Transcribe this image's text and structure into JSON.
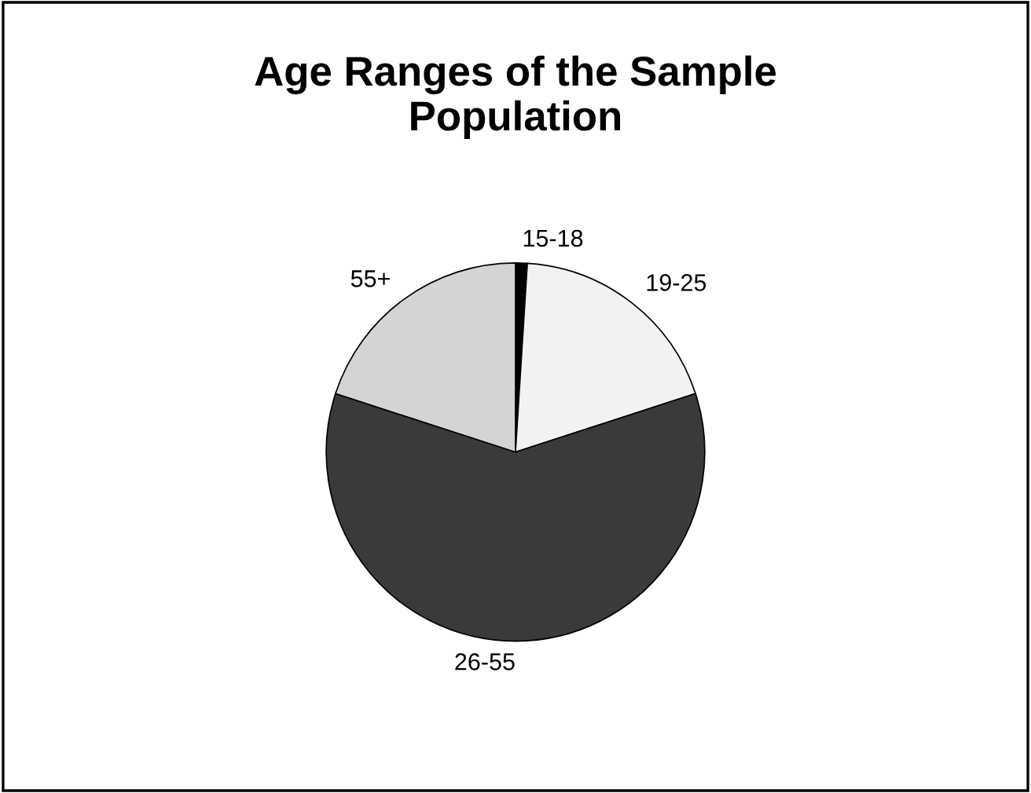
{
  "chart_data": {
    "type": "pie",
    "title": "Age Ranges of the Sample\nPopulation",
    "categories": [
      "15-18",
      "19-25",
      "26-55",
      "55+"
    ],
    "values": [
      1,
      19,
      60,
      20
    ],
    "colors": [
      "#000000",
      "#f2f2f2",
      "#3a3a3a",
      "#d4d4d4"
    ]
  }
}
